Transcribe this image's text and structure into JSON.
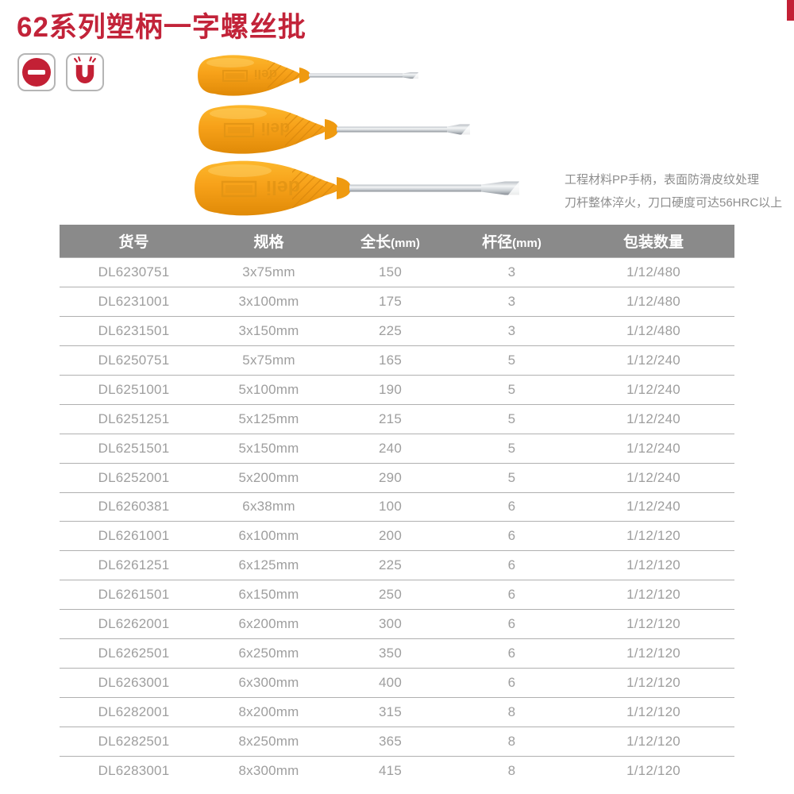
{
  "page": {
    "title": "62系列塑柄一字螺丝批"
  },
  "colors": {
    "brand_red": "#c22339",
    "handle_orange": "#f7a119",
    "table_header_bg": "#8a8a8a",
    "table_text_gray": "#9e9e9e",
    "desc_text_gray": "#8d8d8d"
  },
  "feature_icons": [
    {
      "name": "slotted-icon"
    },
    {
      "name": "magnet-icon"
    }
  ],
  "product": {
    "brand": "deli",
    "description_lines": [
      "工程材料PP手柄，表面防滑皮纹处理",
      "刀杆整体淬火，刀口硬度可达56HRC以上"
    ]
  },
  "table": {
    "headers": [
      {
        "main": "货号",
        "sub": ""
      },
      {
        "main": "规格",
        "sub": ""
      },
      {
        "main": "全长",
        "sub": "(mm)"
      },
      {
        "main": "杆径",
        "sub": "(mm)"
      },
      {
        "main": "包装数量",
        "sub": ""
      }
    ],
    "rows": [
      [
        "DL6230751",
        "3x75mm",
        "150",
        "3",
        "1/12/480"
      ],
      [
        "DL6231001",
        "3x100mm",
        "175",
        "3",
        "1/12/480"
      ],
      [
        "DL6231501",
        "3x150mm",
        "225",
        "3",
        "1/12/480"
      ],
      [
        "DL6250751",
        "5x75mm",
        "165",
        "5",
        "1/12/240"
      ],
      [
        "DL6251001",
        "5x100mm",
        "190",
        "5",
        "1/12/240"
      ],
      [
        "DL6251251",
        "5x125mm",
        "215",
        "5",
        "1/12/240"
      ],
      [
        "DL6251501",
        "5x150mm",
        "240",
        "5",
        "1/12/240"
      ],
      [
        "DL6252001",
        "5x200mm",
        "290",
        "5",
        "1/12/240"
      ],
      [
        "DL6260381",
        "6x38mm",
        "100",
        "6",
        "1/12/240"
      ],
      [
        "DL6261001",
        "6x100mm",
        "200",
        "6",
        "1/12/120"
      ],
      [
        "DL6261251",
        "6x125mm",
        "225",
        "6",
        "1/12/120"
      ],
      [
        "DL6261501",
        "6x150mm",
        "250",
        "6",
        "1/12/120"
      ],
      [
        "DL6262001",
        "6x200mm",
        "300",
        "6",
        "1/12/120"
      ],
      [
        "DL6262501",
        "6x250mm",
        "350",
        "6",
        "1/12/120"
      ],
      [
        "DL6263001",
        "6x300mm",
        "400",
        "6",
        "1/12/120"
      ],
      [
        "DL6282001",
        "8x200mm",
        "315",
        "8",
        "1/12/120"
      ],
      [
        "DL6282501",
        "8x250mm",
        "365",
        "8",
        "1/12/120"
      ],
      [
        "DL6283001",
        "8x300mm",
        "415",
        "8",
        "1/12/120"
      ]
    ]
  }
}
